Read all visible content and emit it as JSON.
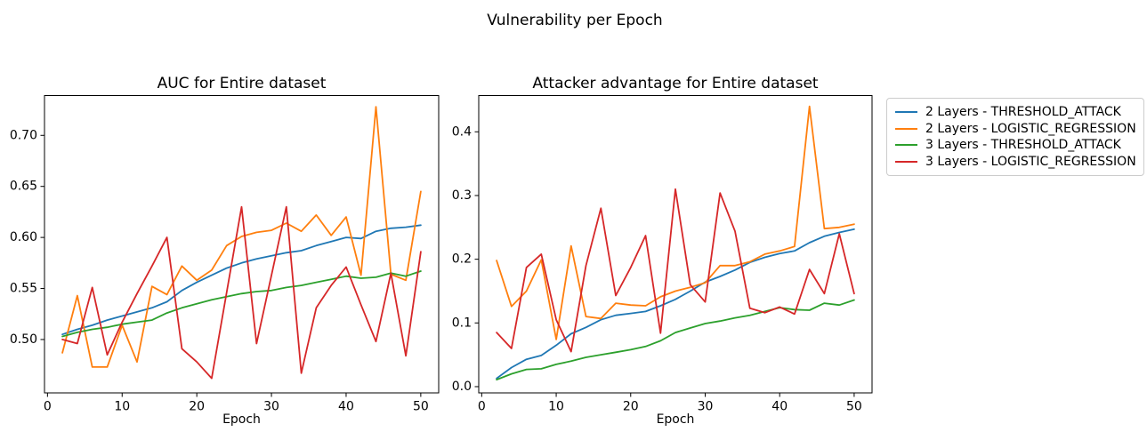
{
  "figure": {
    "suptitle": "Vulnerability per Epoch",
    "background": "#ffffff"
  },
  "legend": {
    "entries": [
      {
        "label": "2 Layers - THRESHOLD_ATTACK",
        "color": "#1f77b4"
      },
      {
        "label": "2 Layers - LOGISTIC_REGRESSION",
        "color": "#ff7f0e"
      },
      {
        "label": "3 Layers - THRESHOLD_ATTACK",
        "color": "#2ca02c"
      },
      {
        "label": "3 Layers - LOGISTIC_REGRESSION",
        "color": "#d62728"
      }
    ]
  },
  "chart_data": [
    {
      "type": "line",
      "title": "AUC for Entire dataset",
      "xlabel": "Epoch",
      "grid": false,
      "xlim": [
        -0.4,
        52.4
      ],
      "ylim": [
        0.4477,
        0.739
      ],
      "x_ticks": [
        0,
        10,
        20,
        30,
        40,
        50
      ],
      "x_tick_labels": [
        "0",
        "10",
        "20",
        "30",
        "40",
        "50"
      ],
      "y_ticks": [
        0.5,
        0.55,
        0.6,
        0.65,
        0.7
      ],
      "y_tick_labels": [
        "0.50",
        "0.55",
        "0.60",
        "0.65",
        "0.70"
      ],
      "x": [
        2,
        4,
        6,
        8,
        10,
        12,
        14,
        16,
        18,
        20,
        22,
        24,
        26,
        28,
        30,
        32,
        34,
        36,
        38,
        40,
        42,
        44,
        46,
        48,
        50
      ],
      "series": [
        {
          "name": "2 Layers - THRESHOLD_ATTACK",
          "color": "#1f77b4",
          "values": [
            0.505,
            0.51,
            0.514,
            0.519,
            0.523,
            0.527,
            0.531,
            0.537,
            0.548,
            0.556,
            0.563,
            0.57,
            0.575,
            0.579,
            0.582,
            0.585,
            0.587,
            0.592,
            0.596,
            0.6,
            0.599,
            0.606,
            0.609,
            0.61,
            0.612
          ]
        },
        {
          "name": "2 Layers - LOGISTIC_REGRESSION",
          "color": "#ff7f0e",
          "values": [
            0.487,
            0.543,
            0.473,
            0.473,
            0.514,
            0.478,
            0.552,
            0.544,
            0.572,
            0.558,
            0.568,
            0.592,
            0.601,
            0.605,
            0.607,
            0.614,
            0.606,
            0.622,
            0.602,
            0.62,
            0.563,
            0.728,
            0.564,
            0.558,
            0.645
          ]
        },
        {
          "name": "3 Layers - THRESHOLD_ATTACK",
          "color": "#2ca02c",
          "values": [
            0.503,
            0.507,
            0.51,
            0.512,
            0.515,
            0.517,
            0.519,
            0.526,
            0.531,
            0.535,
            0.539,
            0.542,
            0.545,
            0.547,
            0.548,
            0.551,
            0.553,
            0.556,
            0.559,
            0.562,
            0.56,
            0.561,
            0.565,
            0.562,
            0.567
          ]
        },
        {
          "name": "3 Layers - LOGISTIC_REGRESSION",
          "color": "#d62728",
          "values": [
            0.5,
            0.496,
            0.551,
            0.485,
            0.517,
            0.545,
            0.572,
            0.6,
            0.491,
            0.478,
            0.462,
            0.546,
            0.63,
            0.496,
            0.563,
            0.63,
            0.467,
            0.531,
            0.553,
            0.571,
            0.534,
            0.498,
            0.565,
            0.484,
            0.586
          ]
        }
      ]
    },
    {
      "type": "line",
      "title": "Attacker advantage for Entire dataset",
      "xlabel": "Epoch",
      "grid": false,
      "xlim": [
        -0.4,
        52.4
      ],
      "ylim": [
        -0.0098,
        0.4569
      ],
      "x_ticks": [
        0,
        10,
        20,
        30,
        40,
        50
      ],
      "x_tick_labels": [
        "0",
        "10",
        "20",
        "30",
        "40",
        "50"
      ],
      "y_ticks": [
        0.0,
        0.1,
        0.2,
        0.3,
        0.4
      ],
      "y_tick_labels": [
        "0.0",
        "0.1",
        "0.2",
        "0.3",
        "0.4"
      ],
      "x": [
        2,
        4,
        6,
        8,
        10,
        12,
        14,
        16,
        18,
        20,
        22,
        24,
        26,
        28,
        30,
        32,
        34,
        36,
        38,
        40,
        42,
        44,
        46,
        48,
        50
      ],
      "series": [
        {
          "name": "2 Layers - THRESHOLD_ATTACK",
          "color": "#1f77b4",
          "values": [
            0.013,
            0.03,
            0.043,
            0.049,
            0.065,
            0.083,
            0.093,
            0.105,
            0.112,
            0.115,
            0.118,
            0.127,
            0.137,
            0.15,
            0.164,
            0.173,
            0.183,
            0.195,
            0.203,
            0.209,
            0.213,
            0.226,
            0.236,
            0.242,
            0.247
          ]
        },
        {
          "name": "2 Layers - LOGISTIC_REGRESSION",
          "color": "#ff7f0e",
          "values": [
            0.198,
            0.126,
            0.15,
            0.199,
            0.074,
            0.221,
            0.11,
            0.107,
            0.131,
            0.128,
            0.127,
            0.141,
            0.15,
            0.156,
            0.163,
            0.19,
            0.19,
            0.196,
            0.208,
            0.213,
            0.22,
            0.44,
            0.248,
            0.25,
            0.255
          ]
        },
        {
          "name": "3 Layers - THRESHOLD_ATTACK",
          "color": "#2ca02c",
          "values": [
            0.011,
            0.02,
            0.027,
            0.028,
            0.035,
            0.04,
            0.046,
            0.05,
            0.054,
            0.058,
            0.063,
            0.072,
            0.085,
            0.092,
            0.099,
            0.103,
            0.108,
            0.112,
            0.118,
            0.124,
            0.121,
            0.12,
            0.131,
            0.128,
            0.136
          ]
        },
        {
          "name": "3 Layers - LOGISTIC_REGRESSION",
          "color": "#d62728",
          "values": [
            0.085,
            0.06,
            0.187,
            0.208,
            0.105,
            0.055,
            0.19,
            0.28,
            0.143,
            0.187,
            0.237,
            0.084,
            0.31,
            0.16,
            0.133,
            0.304,
            0.244,
            0.123,
            0.116,
            0.125,
            0.114,
            0.184,
            0.146,
            0.24,
            0.146
          ]
        }
      ]
    }
  ]
}
